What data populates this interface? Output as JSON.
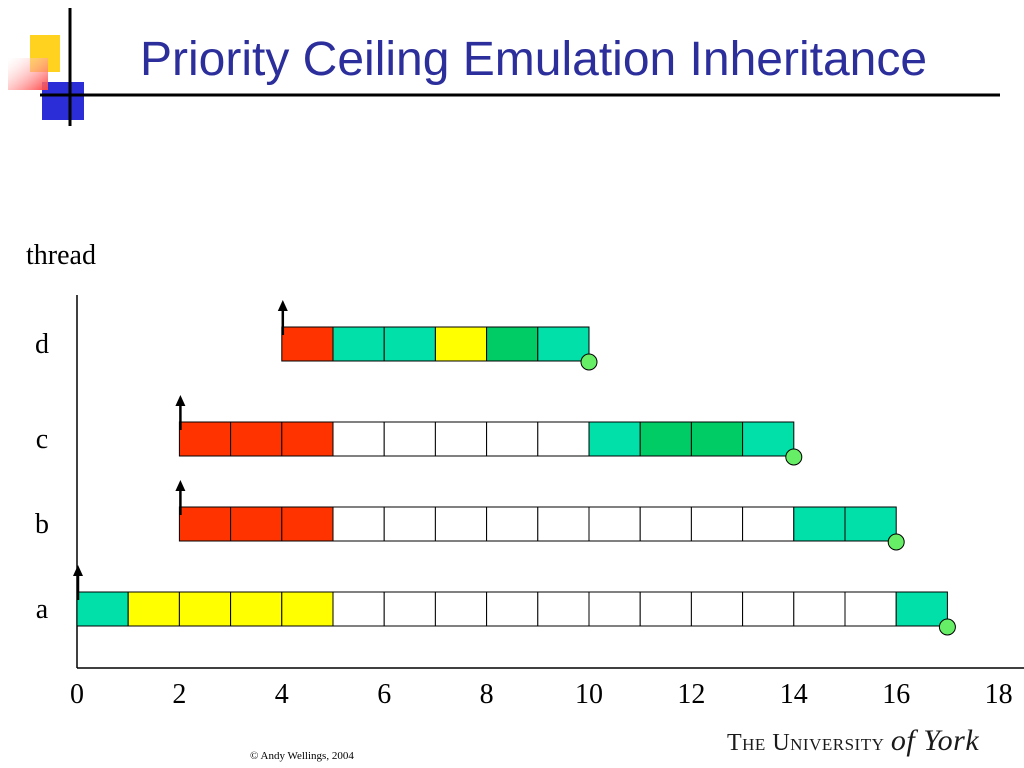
{
  "slide": {
    "title": "Priority Ceiling Emulation Inheritance",
    "copyright": "© Andy Wellings, 2004",
    "logo": "The University of York"
  },
  "colors": {
    "title": "#2b2e9b",
    "red": "#ff3300",
    "teal": "#00e0a8",
    "green": "#00cc66",
    "yellow": "#ffff00",
    "empty": "#ffffff",
    "finish_marker": "#66ee66",
    "deco_yellow": "#ffd21f",
    "deco_red": "#ff4444",
    "deco_blue": "#2b2ed6"
  },
  "chart_data": {
    "type": "timeline",
    "ylabel": "thread",
    "xlabel": "",
    "xlim": [
      0,
      18
    ],
    "x_ticks": [
      0,
      2,
      4,
      6,
      8,
      10,
      12,
      14,
      16,
      18
    ],
    "tasks": [
      {
        "name": "d",
        "release": 4,
        "finish": 10,
        "cells": [
          "red",
          "teal",
          "teal",
          "yellow",
          "green",
          "teal"
        ]
      },
      {
        "name": "c",
        "release": 2,
        "finish": 14,
        "cells": [
          "red",
          "red",
          "red",
          "empty",
          "empty",
          "empty",
          "empty",
          "empty",
          "teal",
          "green",
          "green",
          "teal"
        ]
      },
      {
        "name": "b",
        "release": 2,
        "finish": 16,
        "cells": [
          "red",
          "red",
          "red",
          "empty",
          "empty",
          "empty",
          "empty",
          "empty",
          "empty",
          "empty",
          "empty",
          "empty",
          "teal",
          "teal"
        ]
      },
      {
        "name": "a",
        "release": 0,
        "finish": 17,
        "cells": [
          "teal",
          "yellow",
          "yellow",
          "yellow",
          "yellow",
          "empty",
          "empty",
          "empty",
          "empty",
          "empty",
          "empty",
          "empty",
          "empty",
          "empty",
          "empty",
          "empty",
          "teal"
        ]
      }
    ]
  }
}
